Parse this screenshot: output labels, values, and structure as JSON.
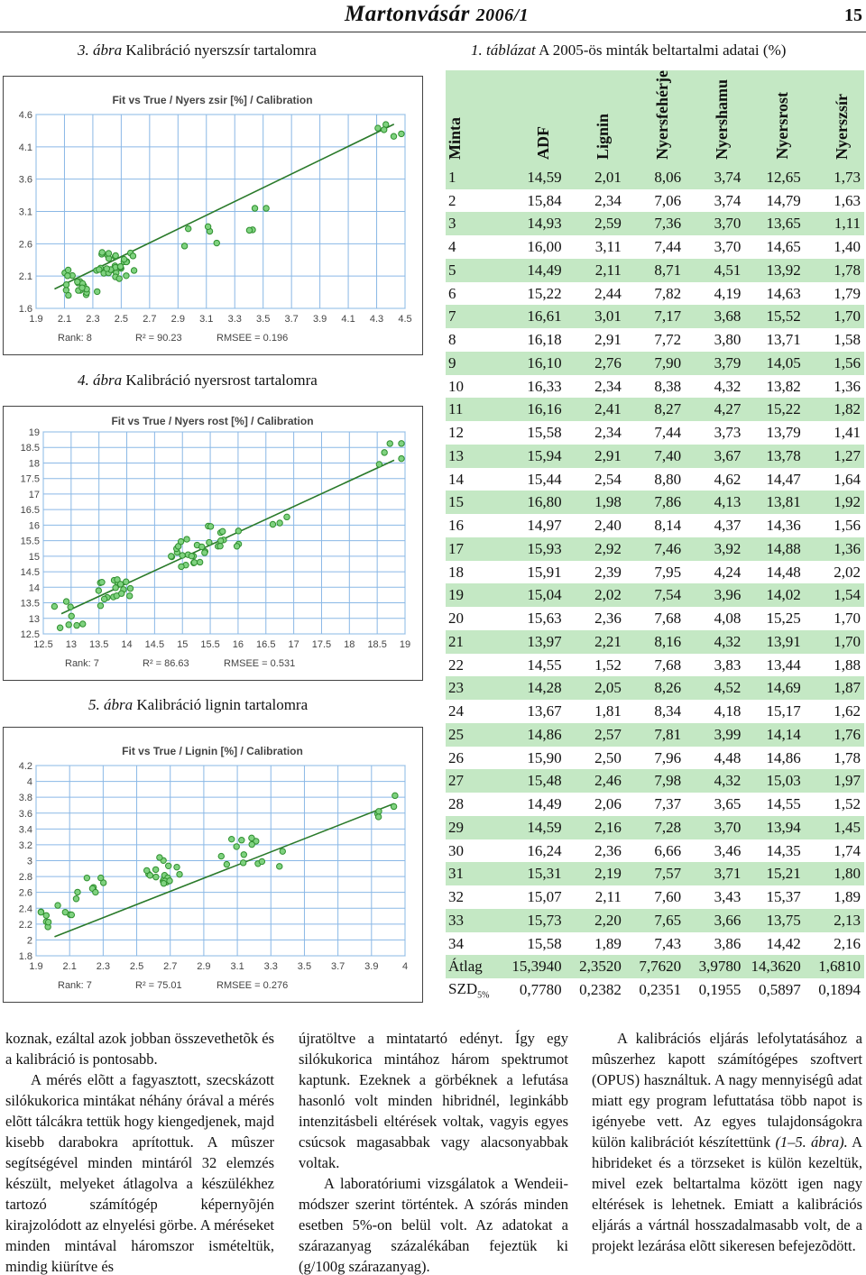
{
  "header": {
    "journal": "Martonvásár",
    "issue": "2006/1",
    "page": "15"
  },
  "figures": [
    {
      "caption_num": "3. ábra",
      "caption_text": "Kalibráció nyerszsír tartalomra",
      "title": "Fit vs True / Nyers zsir [%] / Calibration",
      "xticks": [
        "1.9",
        "2.1",
        "2.3",
        "2.5",
        "2.7",
        "2.9",
        "3.1",
        "3.3",
        "3.5",
        "3.7",
        "3.9",
        "4.1",
        "4.3",
        "4.5"
      ],
      "yticks": [
        "4.6",
        "4.1",
        "3.6",
        "3.1",
        "2.6",
        "2.1",
        "1.6"
      ],
      "stats": {
        "rank": "Rank: 8",
        "r2": "R² = 90.23",
        "rmsee": "RMSEE = 0.196"
      }
    },
    {
      "caption_num": "4. ábra",
      "caption_text": "Kalibráció nyersrost tartalomra",
      "title": "Fit vs True / Nyers rost [%] / Calibration",
      "xticks": [
        "12.5",
        "13",
        "13.5",
        "14",
        "14.5",
        "15",
        "15.5",
        "16",
        "16.5",
        "17",
        "17.5",
        "18",
        "18.5",
        "19"
      ],
      "yticks": [
        "19",
        "18.5",
        "18",
        "17.5",
        "17",
        "16.5",
        "16",
        "15.5",
        "15",
        "14.5",
        "14",
        "13.5",
        "13",
        "12.5"
      ],
      "stats": {
        "rank": "Rank: 7",
        "r2": "R² = 86.63",
        "rmsee": "RMSEE = 0.531"
      }
    },
    {
      "caption_num": "5. ábra",
      "caption_text": "Kalibráció lignin tartalomra",
      "title": "Fit vs True / Lignin [%] / Calibration",
      "xticks": [
        "1.9",
        "2.1",
        "2.3",
        "2.5",
        "2.7",
        "2.9",
        "3.1",
        "3.3",
        "3.5",
        "3.7",
        "3.9",
        "4"
      ],
      "yticks": [
        "4.2",
        "4",
        "3.8",
        "3.6",
        "3.4",
        "3.2",
        "3",
        "2.8",
        "2.6",
        "2.4",
        "2.2",
        "2",
        "1.8"
      ],
      "stats": {
        "rank": "Rank: 7",
        "r2": "R² = 75.01",
        "rmsee": "RMSEE = 0.276"
      }
    }
  ],
  "table": {
    "caption_num": "1. táblázat",
    "caption_text": "A 2005-ös minták beltartalmi adatai (%)",
    "headers": [
      "Minta",
      "ADF",
      "Lignin",
      "Nyersfehérje",
      "Nyershamu",
      "Nyersrost",
      "Nyerszsír"
    ],
    "rows": [
      [
        "1",
        "14,59",
        "2,01",
        "8,06",
        "3,74",
        "12,65",
        "1,73"
      ],
      [
        "2",
        "15,84",
        "2,34",
        "7,06",
        "3,74",
        "14,79",
        "1,63"
      ],
      [
        "3",
        "14,93",
        "2,59",
        "7,36",
        "3,70",
        "13,65",
        "1,11"
      ],
      [
        "4",
        "16,00",
        "3,11",
        "7,44",
        "3,70",
        "14,65",
        "1,40"
      ],
      [
        "5",
        "14,49",
        "2,11",
        "8,71",
        "4,51",
        "13,92",
        "1,78"
      ],
      [
        "6",
        "15,22",
        "2,44",
        "7,82",
        "4,19",
        "14,63",
        "1,79"
      ],
      [
        "7",
        "16,61",
        "3,01",
        "7,17",
        "3,68",
        "15,52",
        "1,70"
      ],
      [
        "8",
        "16,18",
        "2,91",
        "7,72",
        "3,80",
        "13,71",
        "1,58"
      ],
      [
        "9",
        "16,10",
        "2,76",
        "7,90",
        "3,79",
        "14,05",
        "1,56"
      ],
      [
        "10",
        "16,33",
        "2,34",
        "8,38",
        "4,32",
        "13,82",
        "1,36"
      ],
      [
        "11",
        "16,16",
        "2,41",
        "8,27",
        "4,27",
        "15,22",
        "1,82"
      ],
      [
        "12",
        "15,58",
        "2,34",
        "7,44",
        "3,73",
        "13,79",
        "1,41"
      ],
      [
        "13",
        "15,94",
        "2,91",
        "7,40",
        "3,67",
        "13,78",
        "1,27"
      ],
      [
        "14",
        "15,44",
        "2,54",
        "8,80",
        "4,62",
        "14,47",
        "1,64"
      ],
      [
        "15",
        "16,80",
        "1,98",
        "7,86",
        "4,13",
        "13,81",
        "1,92"
      ],
      [
        "16",
        "14,97",
        "2,40",
        "8,14",
        "4,37",
        "14,36",
        "1,56"
      ],
      [
        "17",
        "15,93",
        "2,92",
        "7,46",
        "3,92",
        "14,88",
        "1,36"
      ],
      [
        "18",
        "15,91",
        "2,39",
        "7,95",
        "4,24",
        "14,48",
        "2,02"
      ],
      [
        "19",
        "15,04",
        "2,02",
        "7,54",
        "3,96",
        "14,02",
        "1,54"
      ],
      [
        "20",
        "15,63",
        "2,36",
        "7,68",
        "4,08",
        "15,25",
        "1,70"
      ],
      [
        "21",
        "13,97",
        "2,21",
        "8,16",
        "4,32",
        "13,91",
        "1,70"
      ],
      [
        "22",
        "14,55",
        "1,52",
        "7,68",
        "3,83",
        "13,44",
        "1,88"
      ],
      [
        "23",
        "14,28",
        "2,05",
        "8,26",
        "4,52",
        "14,69",
        "1,87"
      ],
      [
        "24",
        "13,67",
        "1,81",
        "8,34",
        "4,18",
        "15,17",
        "1,62"
      ],
      [
        "25",
        "14,86",
        "2,57",
        "7,81",
        "3,99",
        "14,14",
        "1,76"
      ],
      [
        "26",
        "15,90",
        "2,50",
        "7,96",
        "4,48",
        "14,86",
        "1,78"
      ],
      [
        "27",
        "15,48",
        "2,46",
        "7,98",
        "4,32",
        "15,03",
        "1,97"
      ],
      [
        "28",
        "14,49",
        "2,06",
        "7,37",
        "3,65",
        "14,55",
        "1,52"
      ],
      [
        "29",
        "14,59",
        "2,16",
        "7,28",
        "3,70",
        "13,94",
        "1,45"
      ],
      [
        "30",
        "16,24",
        "2,36",
        "6,66",
        "3,46",
        "14,35",
        "1,74"
      ],
      [
        "31",
        "15,31",
        "2,19",
        "7,57",
        "3,71",
        "15,21",
        "1,80"
      ],
      [
        "32",
        "15,07",
        "2,11",
        "7,60",
        "3,43",
        "15,37",
        "1,89"
      ],
      [
        "33",
        "15,73",
        "2,20",
        "7,65",
        "3,66",
        "13,75",
        "2,13"
      ],
      [
        "34",
        "15,58",
        "1,89",
        "7,43",
        "3,86",
        "14,42",
        "2,16"
      ]
    ],
    "avg": [
      "Átlag",
      "15,3940",
      "2,3520",
      "7,7620",
      "3,9780",
      "14,3620",
      "1,6810"
    ],
    "szd": {
      "label": "SZD",
      "sub": "5%",
      "values": [
        "0,7780",
        "0,2382",
        "0,2351",
        "0,1955",
        "0,5897",
        "0,1894"
      ]
    }
  },
  "body": {
    "col1_p1": "koznak, ezáltal azok jobban összevethetõk és a kalibráció is pontosabb.",
    "col1_p2": "A mérés elõtt a fagyasztott, szecskázott silókukorica mintákat néhány órával a mérés elõtt tálcákra tettük hogy kiengedjenek, majd kisebb darabokra aprítottuk. A mûszer segítségével minden mintáról 32 elemzés készült, melyeket átlagolva a készülékhez tartozó számítógép képernyõjén kirajzolódott az elnyelési görbe. A méréseket minden mintával háromszor ismételtük, mindig kiürítve és",
    "col2_p1": "újratöltve a mintatartó edényt. Így egy silókukorica mintához három spektrumot kaptunk. Ezeknek a görbéknek a lefutása hasonló volt minden hibridnél, leginkább intenzitásbeli eltérések voltak, vagyis egyes csúcsok magasabbak vagy alacsonyabbak voltak.",
    "col2_p2": "A laboratóriumi vizsgálatok a Wendeii-módszer szerint történtek. A szórás minden esetben 5%-on belül volt. Az adatokat a szárazanyag százalékában fejeztük ki (g/100g szárazanyag).",
    "col3_p1": "A kalibrációs eljárás lefolytatásához a mûszerhez kapott számítógépes szoftvert (OPUS) használtuk. A nagy mennyiségû adat miatt egy program lefuttatása több napot is igényebe vett. Az egyes tulajdonságokra külön kalibrációt készítettünk",
    "col3_ref": "(1–5. ábra).",
    "col3_p1b": "A hibrideket és a törzseket is külön kezeltük, mivel ezek beltartalma között igen nagy eltérések is lehetnek. Emiatt a kalibrációs eljárás a vártnál hosszadalmasabb volt, de a projekt lezárása elõtt sikeresen befejezõdött."
  }
}
